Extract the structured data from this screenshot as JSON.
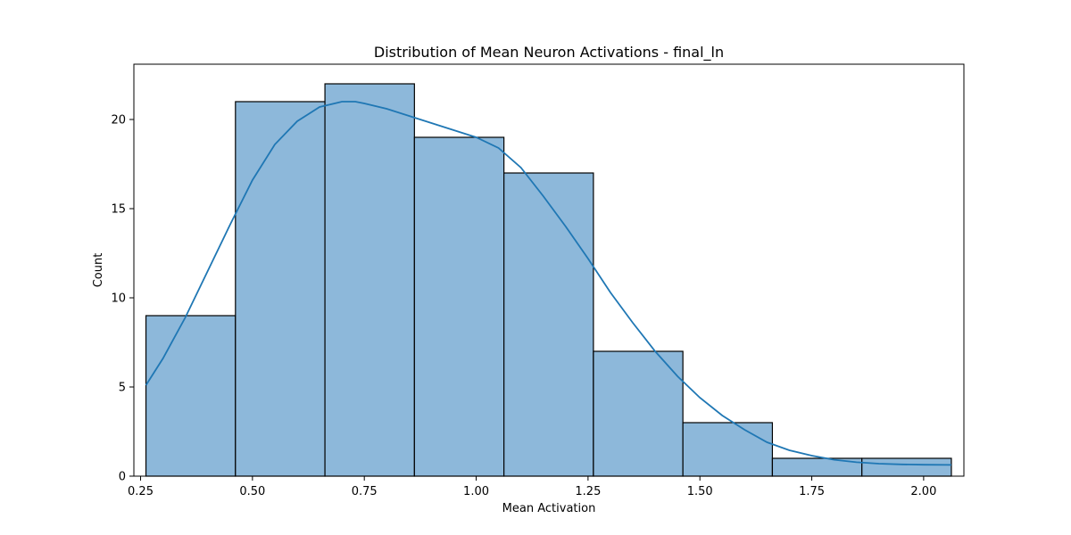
{
  "chart_data": {
    "type": "bar",
    "title": "Distribution of Mean Neuron Activations - final_ln",
    "xlabel": "Mean Activation",
    "ylabel": "Count",
    "xlim": [
      0.235,
      2.09
    ],
    "ylim": [
      0,
      23.1
    ],
    "grid": false,
    "bin_edges": [
      0.262,
      0.462,
      0.662,
      0.862,
      1.062,
      1.262,
      1.462,
      1.662,
      1.862,
      2.062
    ],
    "counts": [
      9,
      21,
      22,
      19,
      17,
      7,
      3,
      1,
      1
    ],
    "xticks": [
      0.25,
      0.5,
      0.75,
      1.0,
      1.25,
      1.5,
      1.75,
      2.0
    ],
    "xtick_labels": [
      "0.25",
      "0.50",
      "0.75",
      "1.00",
      "1.25",
      "1.50",
      "1.75",
      "2.00"
    ],
    "yticks": [
      0,
      5,
      10,
      15,
      20
    ],
    "ytick_labels": [
      "0",
      "5",
      "10",
      "15",
      "20"
    ],
    "kde": {
      "x": [
        0.262,
        0.3,
        0.35,
        0.4,
        0.45,
        0.5,
        0.55,
        0.6,
        0.65,
        0.7,
        0.73,
        0.75,
        0.8,
        0.85,
        0.9,
        0.95,
        1.0,
        1.05,
        1.1,
        1.15,
        1.2,
        1.25,
        1.3,
        1.35,
        1.4,
        1.45,
        1.5,
        1.55,
        1.6,
        1.65,
        1.7,
        1.75,
        1.8,
        1.85,
        1.9,
        1.95,
        2.0,
        2.062
      ],
      "y": [
        5.1,
        6.6,
        8.9,
        11.5,
        14.1,
        16.6,
        18.6,
        19.9,
        20.7,
        21.0,
        21.0,
        20.9,
        20.6,
        20.2,
        19.8,
        19.4,
        19.0,
        18.4,
        17.3,
        15.7,
        14.0,
        12.2,
        10.3,
        8.6,
        7.0,
        5.6,
        4.4,
        3.4,
        2.6,
        1.9,
        1.45,
        1.15,
        0.92,
        0.78,
        0.7,
        0.66,
        0.64,
        0.63
      ]
    },
    "colors": {
      "bar_fill": "#8db8da",
      "bar_edge": "#000000",
      "kde_line": "#1f77b4"
    }
  }
}
